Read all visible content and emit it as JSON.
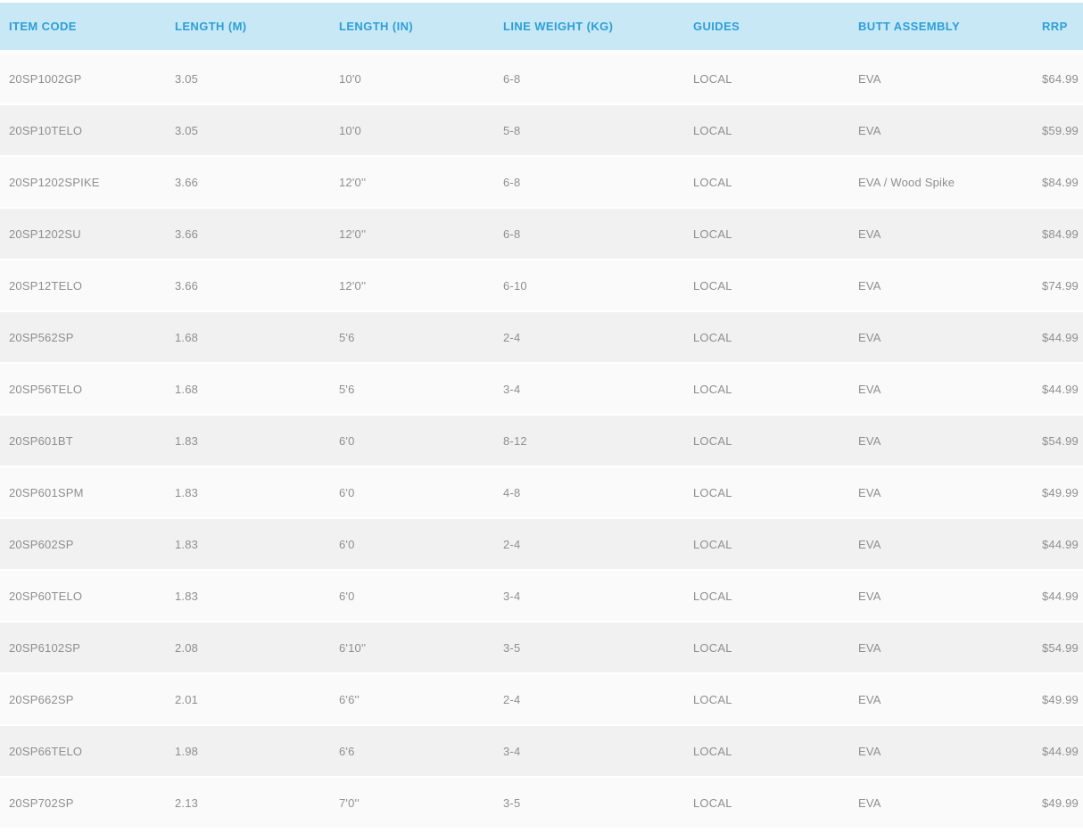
{
  "table": {
    "columns": [
      {
        "key": "item_code",
        "label": "ITEM CODE"
      },
      {
        "key": "length_m",
        "label": "LENGTH (M)"
      },
      {
        "key": "length_in",
        "label": "LENGTH (IN)"
      },
      {
        "key": "line_weight_kg",
        "label": "LINE WEIGHT (KG)"
      },
      {
        "key": "guides",
        "label": "GUIDES"
      },
      {
        "key": "butt_assembly",
        "label": "BUTT ASSEMBLY"
      },
      {
        "key": "rrp",
        "label": "RRP"
      }
    ],
    "rows": [
      [
        "20SP1002GP",
        "3.05",
        "10'0",
        "6-8",
        "LOCAL",
        "EVA",
        "$64.99"
      ],
      [
        "20SP10TELO",
        "3.05",
        "10'0",
        "5-8",
        "LOCAL",
        "EVA",
        "$59.99"
      ],
      [
        "20SP1202SPIKE",
        "3.66",
        "12'0''",
        "6-8",
        "LOCAL",
        "EVA / Wood Spike",
        "$84.99"
      ],
      [
        "20SP1202SU",
        "3.66",
        "12'0''",
        "6-8",
        "LOCAL",
        "EVA",
        "$84.99"
      ],
      [
        "20SP12TELO",
        "3.66",
        "12'0''",
        "6-10",
        "LOCAL",
        "EVA",
        "$74.99"
      ],
      [
        "20SP562SP",
        "1.68",
        "5'6",
        "2-4",
        "LOCAL",
        "EVA",
        "$44.99"
      ],
      [
        "20SP56TELO",
        "1.68",
        "5'6",
        "3-4",
        "LOCAL",
        "EVA",
        "$44.99"
      ],
      [
        "20SP601BT",
        "1.83",
        "6'0",
        "8-12",
        "LOCAL",
        "EVA",
        "$54.99"
      ],
      [
        "20SP601SPM",
        "1.83",
        "6'0",
        "4-8",
        "LOCAL",
        "EVA",
        "$49.99"
      ],
      [
        "20SP602SP",
        "1.83",
        "6'0",
        "2-4",
        "LOCAL",
        "EVA",
        "$44.99"
      ],
      [
        "20SP60TELO",
        "1.83",
        "6'0",
        "3-4",
        "LOCAL",
        "EVA",
        "$44.99"
      ],
      [
        "20SP6102SP",
        "2.08",
        "6'10''",
        "3-5",
        "LOCAL",
        "EVA",
        "$54.99"
      ],
      [
        "20SP662SP",
        "2.01",
        "6'6''",
        "2-4",
        "LOCAL",
        "EVA",
        "$49.99"
      ],
      [
        "20SP66TELO",
        "1.98",
        "6'6",
        "3-4",
        "LOCAL",
        "EVA",
        "$44.99"
      ],
      [
        "20SP702SP",
        "2.13",
        "7'0''",
        "3-5",
        "LOCAL",
        "EVA",
        "$49.99"
      ]
    ],
    "stripe_start": "light",
    "colors": {
      "header_bg": "#c9e8f6",
      "header_text": "#2b9fd8",
      "row_light": "#fafafa",
      "row_dark": "#f1f1f1",
      "cell_text": "#8f8f8f"
    }
  }
}
